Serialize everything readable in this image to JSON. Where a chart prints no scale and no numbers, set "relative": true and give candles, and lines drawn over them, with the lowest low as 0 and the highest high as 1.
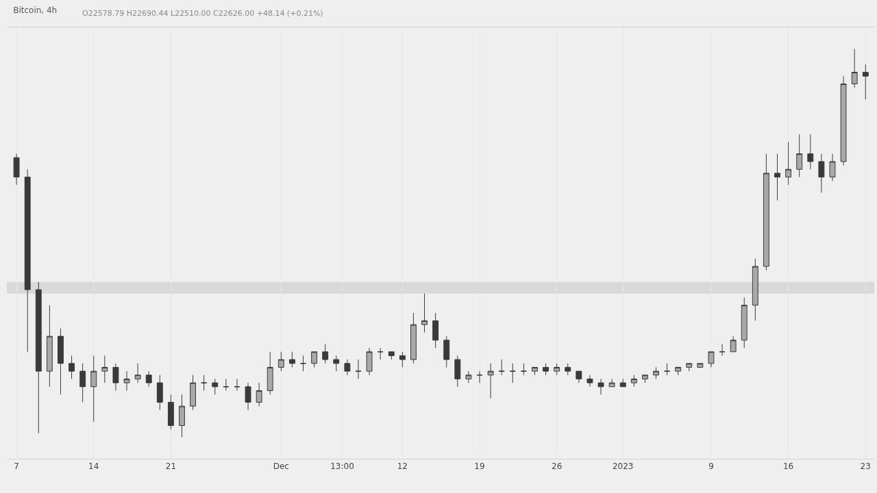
{
  "chart_data": {
    "type": "candlestick",
    "title": "Bitcoin, 4h",
    "annotations": [
      "O22578.79 H22690.44 L22510.00 C22626.00 +48.14 (+0.21%)"
    ],
    "relative": true,
    "grid": "x",
    "xlim": [
      "2022-11-06T03:00",
      "2023-01-23T19:00"
    ],
    "xticks": [
      {
        "value": "2022-11-07",
        "label": "7"
      },
      {
        "value": "2022-11-14",
        "label": "14"
      },
      {
        "value": "2022-11-21",
        "label": "21"
      },
      {
        "value": "2022-12-01",
        "label": "Dec"
      },
      {
        "value": "2022-12-06T13:00",
        "label": "13:00"
      },
      {
        "value": "2022-12-12",
        "label": "12"
      },
      {
        "value": "2022-12-19",
        "label": "19"
      },
      {
        "value": "2022-12-26",
        "label": "26"
      },
      {
        "value": "2023-01-01",
        "label": "2023"
      },
      {
        "value": "2023-01-09",
        "label": "9"
      },
      {
        "value": "2023-01-16",
        "label": "16"
      },
      {
        "value": "2023-01-23",
        "label": "23"
      }
    ],
    "bands": [
      {
        "axis": "y",
        "from": 0.37,
        "to": 0.4,
        "color": "#d9d9d9"
      }
    ],
    "x": [
      "2022-11-07",
      "2022-11-08",
      "2022-11-09",
      "2022-11-10",
      "2022-11-11",
      "2022-11-12",
      "2022-11-13",
      "2022-11-14",
      "2022-11-15",
      "2022-11-16",
      "2022-11-17",
      "2022-11-18",
      "2022-11-19",
      "2022-11-20",
      "2022-11-21",
      "2022-11-22",
      "2022-11-23",
      "2022-11-24",
      "2022-11-25",
      "2022-11-26",
      "2022-11-27",
      "2022-11-28",
      "2022-11-29",
      "2022-11-30",
      "2022-12-01",
      "2022-12-02",
      "2022-12-03",
      "2022-12-04",
      "2022-12-05",
      "2022-12-06",
      "2022-12-07",
      "2022-12-08",
      "2022-12-09",
      "2022-12-10",
      "2022-12-11",
      "2022-12-12",
      "2022-12-13",
      "2022-12-14",
      "2022-12-15",
      "2022-12-16",
      "2022-12-17",
      "2022-12-18",
      "2022-12-19",
      "2022-12-20",
      "2022-12-21",
      "2022-12-22",
      "2022-12-23",
      "2022-12-24",
      "2022-12-25",
      "2022-12-26",
      "2022-12-27",
      "2022-12-28",
      "2022-12-29",
      "2022-12-30",
      "2022-12-31",
      "2023-01-01",
      "2023-01-02",
      "2023-01-03",
      "2023-01-04",
      "2023-01-05",
      "2023-01-06",
      "2023-01-07",
      "2023-01-08",
      "2023-01-09",
      "2023-01-10",
      "2023-01-11",
      "2023-01-12",
      "2023-01-13",
      "2023-01-14",
      "2023-01-15",
      "2023-01-16",
      "2023-01-17",
      "2023-01-18",
      "2023-01-19",
      "2023-01-20",
      "2023-01-21",
      "2023-01-22",
      "2023-01-23"
    ],
    "series": [
      {
        "color": "#3a3a3a",
        "ohlc": [
          [
            0.72,
            0.73,
            0.65,
            0.67
          ],
          [
            0.67,
            0.69,
            0.22,
            0.38
          ],
          [
            0.38,
            0.4,
            0.01,
            0.17
          ],
          [
            0.17,
            0.34,
            0.13,
            0.26
          ],
          [
            0.26,
            0.28,
            0.11,
            0.19
          ],
          [
            0.19,
            0.21,
            0.15,
            0.17
          ],
          [
            0.17,
            0.19,
            0.09,
            0.13
          ],
          [
            0.13,
            0.21,
            0.04,
            0.17
          ],
          [
            0.17,
            0.21,
            0.14,
            0.18
          ],
          [
            0.18,
            0.19,
            0.12,
            0.14
          ],
          [
            0.14,
            0.17,
            0.12,
            0.15
          ],
          [
            0.15,
            0.19,
            0.14,
            0.16
          ],
          [
            0.16,
            0.17,
            0.13,
            0.14
          ],
          [
            0.14,
            0.16,
            0.07,
            0.09
          ],
          [
            0.09,
            0.11,
            0.02,
            0.03
          ],
          [
            0.03,
            0.11,
            0,
            0.08
          ],
          [
            0.08,
            0.16,
            0.07,
            0.14
          ],
          [
            0.14,
            0.16,
            0.12,
            0.14
          ],
          [
            0.14,
            0.15,
            0.11,
            0.13
          ],
          [
            0.13,
            0.15,
            0.12,
            0.13
          ],
          [
            0.13,
            0.15,
            0.12,
            0.13
          ],
          [
            0.13,
            0.14,
            0.07,
            0.09
          ],
          [
            0.09,
            0.14,
            0.08,
            0.12
          ],
          [
            0.12,
            0.22,
            0.11,
            0.18
          ],
          [
            0.18,
            0.22,
            0.17,
            0.2
          ],
          [
            0.2,
            0.22,
            0.18,
            0.19
          ],
          [
            0.19,
            0.21,
            0.17,
            0.19
          ],
          [
            0.19,
            0.22,
            0.18,
            0.22
          ],
          [
            0.22,
            0.24,
            0.19,
            0.2
          ],
          [
            0.2,
            0.21,
            0.17,
            0.19
          ],
          [
            0.19,
            0.2,
            0.16,
            0.17
          ],
          [
            0.17,
            0.2,
            0.15,
            0.17
          ],
          [
            0.17,
            0.23,
            0.16,
            0.22
          ],
          [
            0.22,
            0.23,
            0.2,
            0.22
          ],
          [
            0.22,
            0.22,
            0.2,
            0.21
          ],
          [
            0.21,
            0.22,
            0.18,
            0.2
          ],
          [
            0.2,
            0.32,
            0.19,
            0.29
          ],
          [
            0.29,
            0.37,
            0.27,
            0.3
          ],
          [
            0.3,
            0.32,
            0.23,
            0.25
          ],
          [
            0.25,
            0.26,
            0.18,
            0.2
          ],
          [
            0.2,
            0.21,
            0.13,
            0.15
          ],
          [
            0.15,
            0.17,
            0.14,
            0.16
          ],
          [
            0.16,
            0.17,
            0.14,
            0.16
          ],
          [
            0.16,
            0.19,
            0.1,
            0.17
          ],
          [
            0.17,
            0.2,
            0.16,
            0.17
          ],
          [
            0.17,
            0.19,
            0.14,
            0.17
          ],
          [
            0.17,
            0.19,
            0.16,
            0.17
          ],
          [
            0.17,
            0.18,
            0.16,
            0.18
          ],
          [
            0.18,
            0.19,
            0.16,
            0.17
          ],
          [
            0.17,
            0.19,
            0.16,
            0.18
          ],
          [
            0.18,
            0.19,
            0.16,
            0.17
          ],
          [
            0.17,
            0.17,
            0.14,
            0.15
          ],
          [
            0.15,
            0.16,
            0.13,
            0.14
          ],
          [
            0.14,
            0.15,
            0.11,
            0.13
          ],
          [
            0.13,
            0.15,
            0.13,
            0.14
          ],
          [
            0.14,
            0.15,
            0.13,
            0.13
          ],
          [
            0.14,
            0.16,
            0.13,
            0.15
          ],
          [
            0.15,
            0.16,
            0.14,
            0.16
          ],
          [
            0.16,
            0.18,
            0.15,
            0.17
          ],
          [
            0.17,
            0.19,
            0.16,
            0.17
          ],
          [
            0.17,
            0.18,
            0.16,
            0.18
          ],
          [
            0.18,
            0.19,
            0.17,
            0.19
          ],
          [
            0.18,
            0.19,
            0.18,
            0.19
          ],
          [
            0.19,
            0.22,
            0.18,
            0.22
          ],
          [
            0.22,
            0.24,
            0.21,
            0.22
          ],
          [
            0.22,
            0.26,
            0.22,
            0.25
          ],
          [
            0.25,
            0.36,
            0.23,
            0.34
          ],
          [
            0.34,
            0.46,
            0.3,
            0.44
          ],
          [
            0.44,
            0.73,
            0.43,
            0.68
          ],
          [
            0.68,
            0.73,
            0.61,
            0.67
          ],
          [
            0.67,
            0.76,
            0.65,
            0.69
          ],
          [
            0.69,
            0.78,
            0.67,
            0.73
          ],
          [
            0.73,
            0.78,
            0.69,
            0.71
          ],
          [
            0.71,
            0.73,
            0.63,
            0.67
          ],
          [
            0.67,
            0.73,
            0.66,
            0.71
          ],
          [
            0.71,
            0.93,
            0.7,
            0.91
          ],
          [
            0.91,
            1.0,
            0.9,
            0.94
          ],
          [
            0.94,
            0.96,
            0.87,
            0.93
          ]
        ]
      }
    ]
  }
}
